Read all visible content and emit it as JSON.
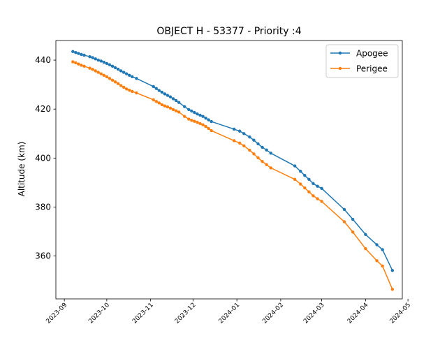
{
  "chart_data": {
    "type": "line",
    "title": "OBJECT H - 53377 - Priority :4",
    "xlabel": "",
    "ylabel": "Altitude (km)",
    "x_ticks": [
      "2023-09",
      "2023-10",
      "2023-11",
      "2023-12",
      "2024-01",
      "2024-02",
      "2024-03",
      "2024-04",
      "2024-05"
    ],
    "x_range": [
      "2023-08-26",
      "2024-04-27"
    ],
    "y_ticks": [
      360,
      380,
      400,
      420,
      440
    ],
    "ylim": [
      342.5,
      448.0
    ],
    "legend_position": "top-right",
    "grid": false,
    "series": [
      {
        "name": "Apogee",
        "color": "#1f77b4",
        "points": [
          [
            "2023-09-07",
            443.5
          ],
          [
            "2023-09-09",
            443.1
          ],
          [
            "2023-09-11",
            442.7
          ],
          [
            "2023-09-13",
            442.3
          ],
          [
            "2023-09-15",
            442.0
          ],
          [
            "2023-09-19",
            441.4
          ],
          [
            "2023-09-21",
            441.0
          ],
          [
            "2023-09-23",
            440.5
          ],
          [
            "2023-09-25",
            440.0
          ],
          [
            "2023-09-27",
            439.6
          ],
          [
            "2023-09-29",
            439.1
          ],
          [
            "2023-10-01",
            438.6
          ],
          [
            "2023-10-03",
            438.1
          ],
          [
            "2023-10-05",
            437.5
          ],
          [
            "2023-10-07",
            436.9
          ],
          [
            "2023-10-09",
            436.3
          ],
          [
            "2023-10-11",
            435.6
          ],
          [
            "2023-10-13",
            435.0
          ],
          [
            "2023-10-15",
            434.4
          ],
          [
            "2023-10-17",
            433.8
          ],
          [
            "2023-10-19",
            433.2
          ],
          [
            "2023-10-22",
            432.5
          ],
          [
            "2023-11-03",
            429.2
          ],
          [
            "2023-11-05",
            428.4
          ],
          [
            "2023-11-07",
            427.6
          ],
          [
            "2023-11-09",
            426.9
          ],
          [
            "2023-11-11",
            426.2
          ],
          [
            "2023-11-13",
            425.6
          ],
          [
            "2023-11-15",
            425.0
          ],
          [
            "2023-11-17",
            424.2
          ],
          [
            "2023-11-19",
            423.5
          ],
          [
            "2023-11-21",
            422.7
          ],
          [
            "2023-11-25",
            421.0
          ],
          [
            "2023-11-28",
            419.8
          ],
          [
            "2023-11-30",
            419.2
          ],
          [
            "2023-12-02",
            418.6
          ],
          [
            "2023-12-04",
            418.0
          ],
          [
            "2023-12-06",
            417.5
          ],
          [
            "2023-12-08",
            417.0
          ],
          [
            "2023-12-10",
            416.3
          ],
          [
            "2023-12-12",
            415.6
          ],
          [
            "2023-12-14",
            414.9
          ],
          [
            "2023-12-30",
            411.8
          ],
          [
            "2024-01-03",
            411.0
          ],
          [
            "2024-01-06",
            410.0
          ],
          [
            "2024-01-10",
            408.6
          ],
          [
            "2024-01-13",
            407.3
          ],
          [
            "2024-01-16",
            405.8
          ],
          [
            "2024-01-19",
            404.4
          ],
          [
            "2024-01-22",
            403.3
          ],
          [
            "2024-01-25",
            402.0
          ],
          [
            "2024-02-11",
            396.8
          ],
          [
            "2024-02-15",
            394.6
          ],
          [
            "2024-02-18",
            392.9
          ],
          [
            "2024-02-21",
            391.3
          ],
          [
            "2024-02-24",
            389.6
          ],
          [
            "2024-02-27",
            388.5
          ],
          [
            "2024-03-01",
            387.6
          ],
          [
            "2024-03-17",
            379.0
          ],
          [
            "2024-03-23",
            375.0
          ],
          [
            "2024-04-01",
            368.8
          ],
          [
            "2024-04-09",
            364.6
          ],
          [
            "2024-04-13",
            362.6
          ],
          [
            "2024-04-20",
            354.1
          ]
        ]
      },
      {
        "name": "Perigee",
        "color": "#ff7f0e",
        "points": [
          [
            "2023-09-07",
            439.3
          ],
          [
            "2023-09-09",
            438.9
          ],
          [
            "2023-09-11",
            438.4
          ],
          [
            "2023-09-13",
            437.9
          ],
          [
            "2023-09-15",
            437.5
          ],
          [
            "2023-09-19",
            436.7
          ],
          [
            "2023-09-21",
            436.2
          ],
          [
            "2023-09-23",
            435.6
          ],
          [
            "2023-09-25",
            435.0
          ],
          [
            "2023-09-27",
            434.4
          ],
          [
            "2023-09-29",
            433.8
          ],
          [
            "2023-10-01",
            433.2
          ],
          [
            "2023-10-03",
            432.5
          ],
          [
            "2023-10-05",
            431.8
          ],
          [
            "2023-10-07",
            431.1
          ],
          [
            "2023-10-09",
            430.4
          ],
          [
            "2023-10-11",
            429.6
          ],
          [
            "2023-10-13",
            428.9
          ],
          [
            "2023-10-15",
            428.2
          ],
          [
            "2023-10-17",
            427.7
          ],
          [
            "2023-10-19",
            427.2
          ],
          [
            "2023-10-22",
            426.6
          ],
          [
            "2023-11-03",
            423.8
          ],
          [
            "2023-11-05",
            423.1
          ],
          [
            "2023-11-07",
            422.5
          ],
          [
            "2023-11-09",
            421.8
          ],
          [
            "2023-11-11",
            421.3
          ],
          [
            "2023-11-13",
            420.9
          ],
          [
            "2023-11-15",
            420.4
          ],
          [
            "2023-11-17",
            419.8
          ],
          [
            "2023-11-19",
            419.3
          ],
          [
            "2023-11-21",
            418.8
          ],
          [
            "2023-11-25",
            417.0
          ],
          [
            "2023-11-28",
            415.9
          ],
          [
            "2023-11-30",
            415.4
          ],
          [
            "2023-12-02",
            415.0
          ],
          [
            "2023-12-04",
            414.6
          ],
          [
            "2023-12-06",
            414.1
          ],
          [
            "2023-12-08",
            413.6
          ],
          [
            "2023-12-10",
            412.9
          ],
          [
            "2023-12-12",
            412.1
          ],
          [
            "2023-12-14",
            411.2
          ],
          [
            "2023-12-30",
            407.1
          ],
          [
            "2024-01-03",
            406.1
          ],
          [
            "2024-01-06",
            405.0
          ],
          [
            "2024-01-10",
            403.2
          ],
          [
            "2024-01-13",
            401.7
          ],
          [
            "2024-01-16",
            400.1
          ],
          [
            "2024-01-19",
            398.6
          ],
          [
            "2024-01-22",
            397.3
          ],
          [
            "2024-01-25",
            396.0
          ],
          [
            "2024-02-11",
            391.3
          ],
          [
            "2024-02-15",
            389.4
          ],
          [
            "2024-02-18",
            387.8
          ],
          [
            "2024-02-21",
            386.2
          ],
          [
            "2024-02-24",
            384.6
          ],
          [
            "2024-02-27",
            383.4
          ],
          [
            "2024-03-01",
            382.3
          ],
          [
            "2024-03-17",
            374.0
          ],
          [
            "2024-03-23",
            369.8
          ],
          [
            "2024-04-01",
            363.0
          ],
          [
            "2024-04-09",
            358.1
          ],
          [
            "2024-04-13",
            355.9
          ],
          [
            "2024-04-20",
            346.4
          ]
        ]
      }
    ]
  }
}
